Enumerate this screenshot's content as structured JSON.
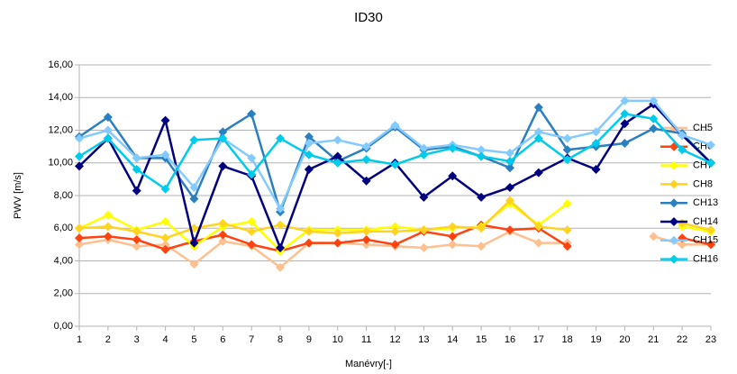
{
  "chart_data": {
    "type": "line",
    "title": "ID30",
    "x_label": "Manévry[-]",
    "y_label": "PWV [m/s]",
    "categories": [
      "1",
      "2",
      "3",
      "4",
      "5",
      "6",
      "7",
      "8",
      "9",
      "10",
      "11",
      "12",
      "13",
      "14",
      "15",
      "16",
      "17",
      "18",
      "19",
      "20",
      "21",
      "22",
      "23"
    ],
    "ylim": [
      0,
      16
    ],
    "yticks": [
      {
        "value": 0,
        "label": "0,00"
      },
      {
        "value": 2,
        "label": "2,00"
      },
      {
        "value": 4,
        "label": "4,00"
      },
      {
        "value": 6,
        "label": "6,00"
      },
      {
        "value": 8,
        "label": "8,00"
      },
      {
        "value": 10,
        "label": "10,00"
      },
      {
        "value": 12,
        "label": "12,00"
      },
      {
        "value": 14,
        "label": "14,00"
      },
      {
        "value": 16,
        "label": "16,00"
      }
    ],
    "grid": true,
    "legend": "right",
    "series": [
      {
        "name": "CH5",
        "color": "#ffbf8f",
        "values": [
          5.0,
          5.3,
          4.9,
          5.0,
          3.8,
          5.2,
          4.9,
          3.6,
          5.1,
          5.1,
          5.0,
          4.9,
          4.8,
          5.0,
          4.9,
          5.8,
          5.1,
          5.1,
          null,
          null,
          5.5,
          5.0,
          5.0
        ]
      },
      {
        "name": "CH6",
        "color": "#ff420e",
        "values": [
          5.4,
          5.5,
          5.3,
          4.7,
          5.2,
          5.6,
          5.0,
          4.6,
          5.1,
          5.1,
          5.3,
          5.0,
          5.8,
          5.5,
          6.2,
          5.9,
          6.0,
          4.9,
          null,
          null,
          null,
          5.4,
          5.0
        ]
      },
      {
        "name": "CH7",
        "color": "#ffff00",
        "values": [
          6.0,
          6.8,
          5.9,
          6.4,
          4.9,
          6.1,
          6.4,
          4.6,
          5.9,
          5.9,
          5.9,
          6.1,
          5.9,
          6.0,
          6.1,
          7.5,
          6.2,
          7.5,
          null,
          null,
          null,
          6.1,
          5.8
        ]
      },
      {
        "name": "CH8",
        "color": "#ffd320",
        "values": [
          6.0,
          6.1,
          5.8,
          5.4,
          6.0,
          6.3,
          5.8,
          6.2,
          5.8,
          5.7,
          5.8,
          5.8,
          5.9,
          6.1,
          6.0,
          7.7,
          6.1,
          5.9,
          null,
          null,
          null,
          6.3,
          5.9
        ]
      },
      {
        "name": "CH13",
        "color": "#2a7fc1",
        "values": [
          11.6,
          12.8,
          10.3,
          10.3,
          7.8,
          11.9,
          13.0,
          7.0,
          11.6,
          10.1,
          10.9,
          12.2,
          10.8,
          11.0,
          10.4,
          9.7,
          13.4,
          10.8,
          11.0,
          11.2,
          12.1,
          11.8,
          10.0
        ]
      },
      {
        "name": "CH14",
        "color": "#000080",
        "values": [
          9.8,
          11.5,
          8.3,
          12.6,
          5.1,
          9.8,
          9.2,
          4.8,
          9.6,
          10.4,
          8.9,
          10.0,
          7.9,
          9.2,
          7.9,
          8.5,
          9.4,
          10.3,
          9.6,
          12.4,
          13.6,
          11.7,
          10.0
        ]
      },
      {
        "name": "CH15",
        "color": "#83caff",
        "values": [
          11.5,
          12.0,
          10.3,
          10.5,
          8.5,
          11.5,
          10.3,
          7.2,
          11.2,
          11.4,
          11.0,
          12.3,
          10.9,
          11.1,
          10.8,
          10.6,
          11.9,
          11.5,
          11.9,
          13.8,
          13.8,
          11.7,
          11.1
        ]
      },
      {
        "name": "CH16",
        "color": "#00cbeb",
        "values": [
          10.4,
          11.5,
          9.6,
          8.4,
          11.4,
          11.5,
          9.3,
          11.5,
          10.5,
          10.0,
          10.2,
          9.9,
          10.5,
          10.9,
          10.4,
          10.1,
          11.5,
          10.2,
          11.2,
          13.0,
          12.7,
          10.8,
          10.0
        ]
      }
    ]
  }
}
